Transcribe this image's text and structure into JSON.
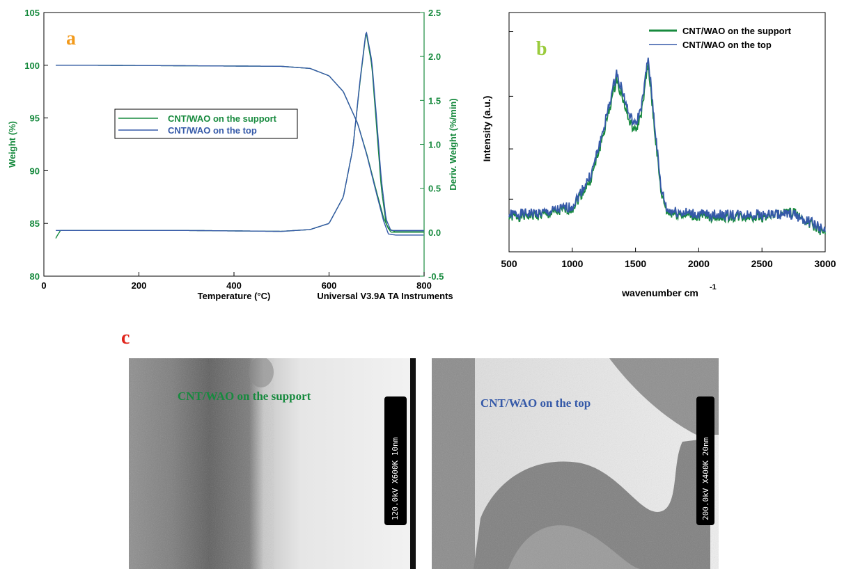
{
  "colors": {
    "support": "#178a3e",
    "top": "#3559a8",
    "label_a": "#f29a1c",
    "label_b": "#9acb3c",
    "label_c": "#e0241b",
    "axis_green": "#178a3e"
  },
  "panels": {
    "a_label": "a",
    "b_label": "b",
    "c_label": "c"
  },
  "chart_data": [
    {
      "type": "line",
      "panel": "a",
      "xlabel": "Temperature (°C)",
      "ylabel": "Weight (%)",
      "y2label": "Deriv. Weight (%/min)",
      "footer": "Universal V3.9A TA Instruments",
      "xlim": [
        0,
        800
      ],
      "ylim": [
        80,
        105
      ],
      "y2lim": [
        -0.5,
        2.5
      ],
      "x_ticks": [
        "0",
        "200",
        "400",
        "600",
        "800"
      ],
      "y_ticks": [
        "80",
        "85",
        "90",
        "95",
        "100",
        "105"
      ],
      "y2_ticks": [
        "-0.5",
        "0.0",
        "0.5",
        "1.0",
        "1.5",
        "2.0",
        "2.5"
      ],
      "legend": [
        "CNT/WAO on the support",
        "CNT/WAO on the top"
      ],
      "legend_position": "center-left",
      "series": [
        {
          "name": "CNT/WAO on the support",
          "axis": "left",
          "x": [
            25,
            100,
            300,
            500,
            560,
            600,
            630,
            660,
            680,
            700,
            715,
            725,
            740,
            800
          ],
          "y": [
            100,
            100,
            99.95,
            99.9,
            99.7,
            99.0,
            97.5,
            94.5,
            91.5,
            88.0,
            85.5,
            84.5,
            84.2,
            84.2
          ]
        },
        {
          "name": "CNT/WAO on the top",
          "axis": "left",
          "x": [
            25,
            100,
            300,
            500,
            560,
            600,
            630,
            660,
            680,
            700,
            715,
            725,
            740,
            800
          ],
          "y": [
            100,
            100,
            99.95,
            99.9,
            99.7,
            99.0,
            97.5,
            94.5,
            91.4,
            87.8,
            85.2,
            84.0,
            83.9,
            83.9
          ]
        },
        {
          "name": "CNT/WAO on the support",
          "axis": "right",
          "x": [
            25,
            28,
            35,
            50,
            100,
            300,
            500,
            560,
            600,
            630,
            650,
            665,
            678,
            690,
            700,
            710,
            720,
            730,
            800
          ],
          "y": [
            -0.07,
            -0.04,
            0.02,
            0.02,
            0.02,
            0.02,
            0.01,
            0.03,
            0.1,
            0.4,
            0.95,
            1.7,
            2.28,
            1.9,
            1.2,
            0.5,
            0.1,
            0.0,
            0.0
          ]
        },
        {
          "name": "CNT/WAO on the top",
          "axis": "right",
          "x": [
            25,
            35,
            50,
            100,
            300,
            500,
            560,
            600,
            630,
            650,
            665,
            678,
            690,
            700,
            710,
            720,
            730,
            800
          ],
          "y": [
            0.02,
            0.02,
            0.02,
            0.02,
            0.02,
            0.01,
            0.03,
            0.1,
            0.4,
            0.95,
            1.72,
            2.3,
            1.95,
            1.3,
            0.6,
            0.15,
            0.02,
            0.02
          ]
        }
      ]
    },
    {
      "type": "line",
      "panel": "b",
      "xlabel": "wavenumber  cm",
      "xlabel_sup": "-1",
      "ylabel": "Intensity   (a.u.)",
      "xlim": [
        500,
        3000
      ],
      "x_ticks": [
        "500",
        "1000",
        "1500",
        "2000",
        "2500",
        "3000"
      ],
      "legend": [
        "CNT/WAO on the support",
        "CNT/WAO on the top"
      ],
      "legend_position": "top-right",
      "series": [
        {
          "name": "CNT/WAO on the support",
          "x": [
            500,
            800,
            1000,
            1150,
            1250,
            1350,
            1400,
            1450,
            1500,
            1550,
            1600,
            1650,
            1700,
            1750,
            2000,
            2500,
            2750,
            2900,
            3000
          ],
          "y": [
            0.1,
            0.11,
            0.14,
            0.28,
            0.5,
            0.75,
            0.66,
            0.55,
            0.5,
            0.6,
            0.82,
            0.52,
            0.22,
            0.12,
            0.1,
            0.1,
            0.12,
            0.06,
            0.02
          ]
        },
        {
          "name": "CNT/WAO on the top",
          "x": [
            500,
            800,
            1000,
            1150,
            1250,
            1350,
            1400,
            1450,
            1500,
            1550,
            1600,
            1650,
            1700,
            1750,
            2000,
            2500,
            2750,
            2900,
            3000
          ],
          "y": [
            0.11,
            0.12,
            0.15,
            0.3,
            0.52,
            0.78,
            0.69,
            0.58,
            0.53,
            0.63,
            0.85,
            0.55,
            0.24,
            0.13,
            0.11,
            0.11,
            0.11,
            0.07,
            0.03
          ]
        }
      ]
    }
  ],
  "tem": {
    "left_label": "CNT/WAO on the support",
    "right_label": "CNT/WAO on the top",
    "left_scale": "120.0kV  X600K   10nm",
    "right_scale": "200.0kV  X400K   20nm"
  }
}
